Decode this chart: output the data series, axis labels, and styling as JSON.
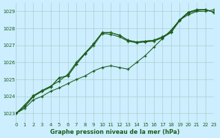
{
  "title": "Graphe pression niveau de la mer (hPa)",
  "bg_color": "#cceeff",
  "grid_color": "#aacccc",
  "line_color": "#1a5c1a",
  "xlim": [
    0,
    23
  ],
  "ylim": [
    1022.5,
    1029.5
  ],
  "yticks": [
    1023,
    1024,
    1025,
    1026,
    1027,
    1028,
    1029
  ],
  "xticks": [
    0,
    1,
    2,
    3,
    4,
    5,
    6,
    7,
    8,
    9,
    10,
    11,
    12,
    13,
    14,
    15,
    16,
    17,
    18,
    19,
    20,
    21,
    22,
    23
  ],
  "series": [
    [
      1023.0,
      1023.3,
      1023.8,
      1024.0,
      1024.3,
      1024.5,
      1024.75,
      1025.0,
      1025.2,
      1025.5,
      1025.7,
      1025.8,
      1025.7,
      1025.6,
      1026.0,
      1026.4,
      1026.9,
      1027.4,
      1027.9,
      1028.5,
      1028.8,
      1029.0,
      1029.0,
      1029.1
    ],
    [
      1023.0,
      1023.4,
      1024.0,
      1024.3,
      1024.55,
      1025.1,
      1025.2,
      1025.9,
      1026.5,
      1027.0,
      1027.7,
      1027.65,
      1027.5,
      1027.25,
      1027.15,
      1027.2,
      1027.25,
      1027.45,
      1027.75,
      1028.45,
      1028.9,
      1029.05,
      1029.1,
      1028.95
    ],
    [
      1023.0,
      1023.4,
      1024.0,
      1024.3,
      1024.55,
      1025.1,
      1025.2,
      1025.9,
      1026.5,
      1027.1,
      1027.75,
      1027.75,
      1027.6,
      1027.3,
      1027.2,
      1027.25,
      1027.3,
      1027.5,
      1027.8,
      1028.5,
      1028.95,
      1029.1,
      1029.1,
      1028.95
    ],
    [
      1023.0,
      1023.5,
      1024.05,
      1024.35,
      1024.6,
      1024.9,
      1025.3,
      1026.0,
      1026.55,
      1027.1,
      1027.75,
      1027.75,
      1027.6,
      1027.3,
      1027.2,
      1027.25,
      1027.3,
      1027.5,
      1027.8,
      1028.5,
      1028.95,
      1029.1,
      1029.1,
      1028.95
    ]
  ]
}
